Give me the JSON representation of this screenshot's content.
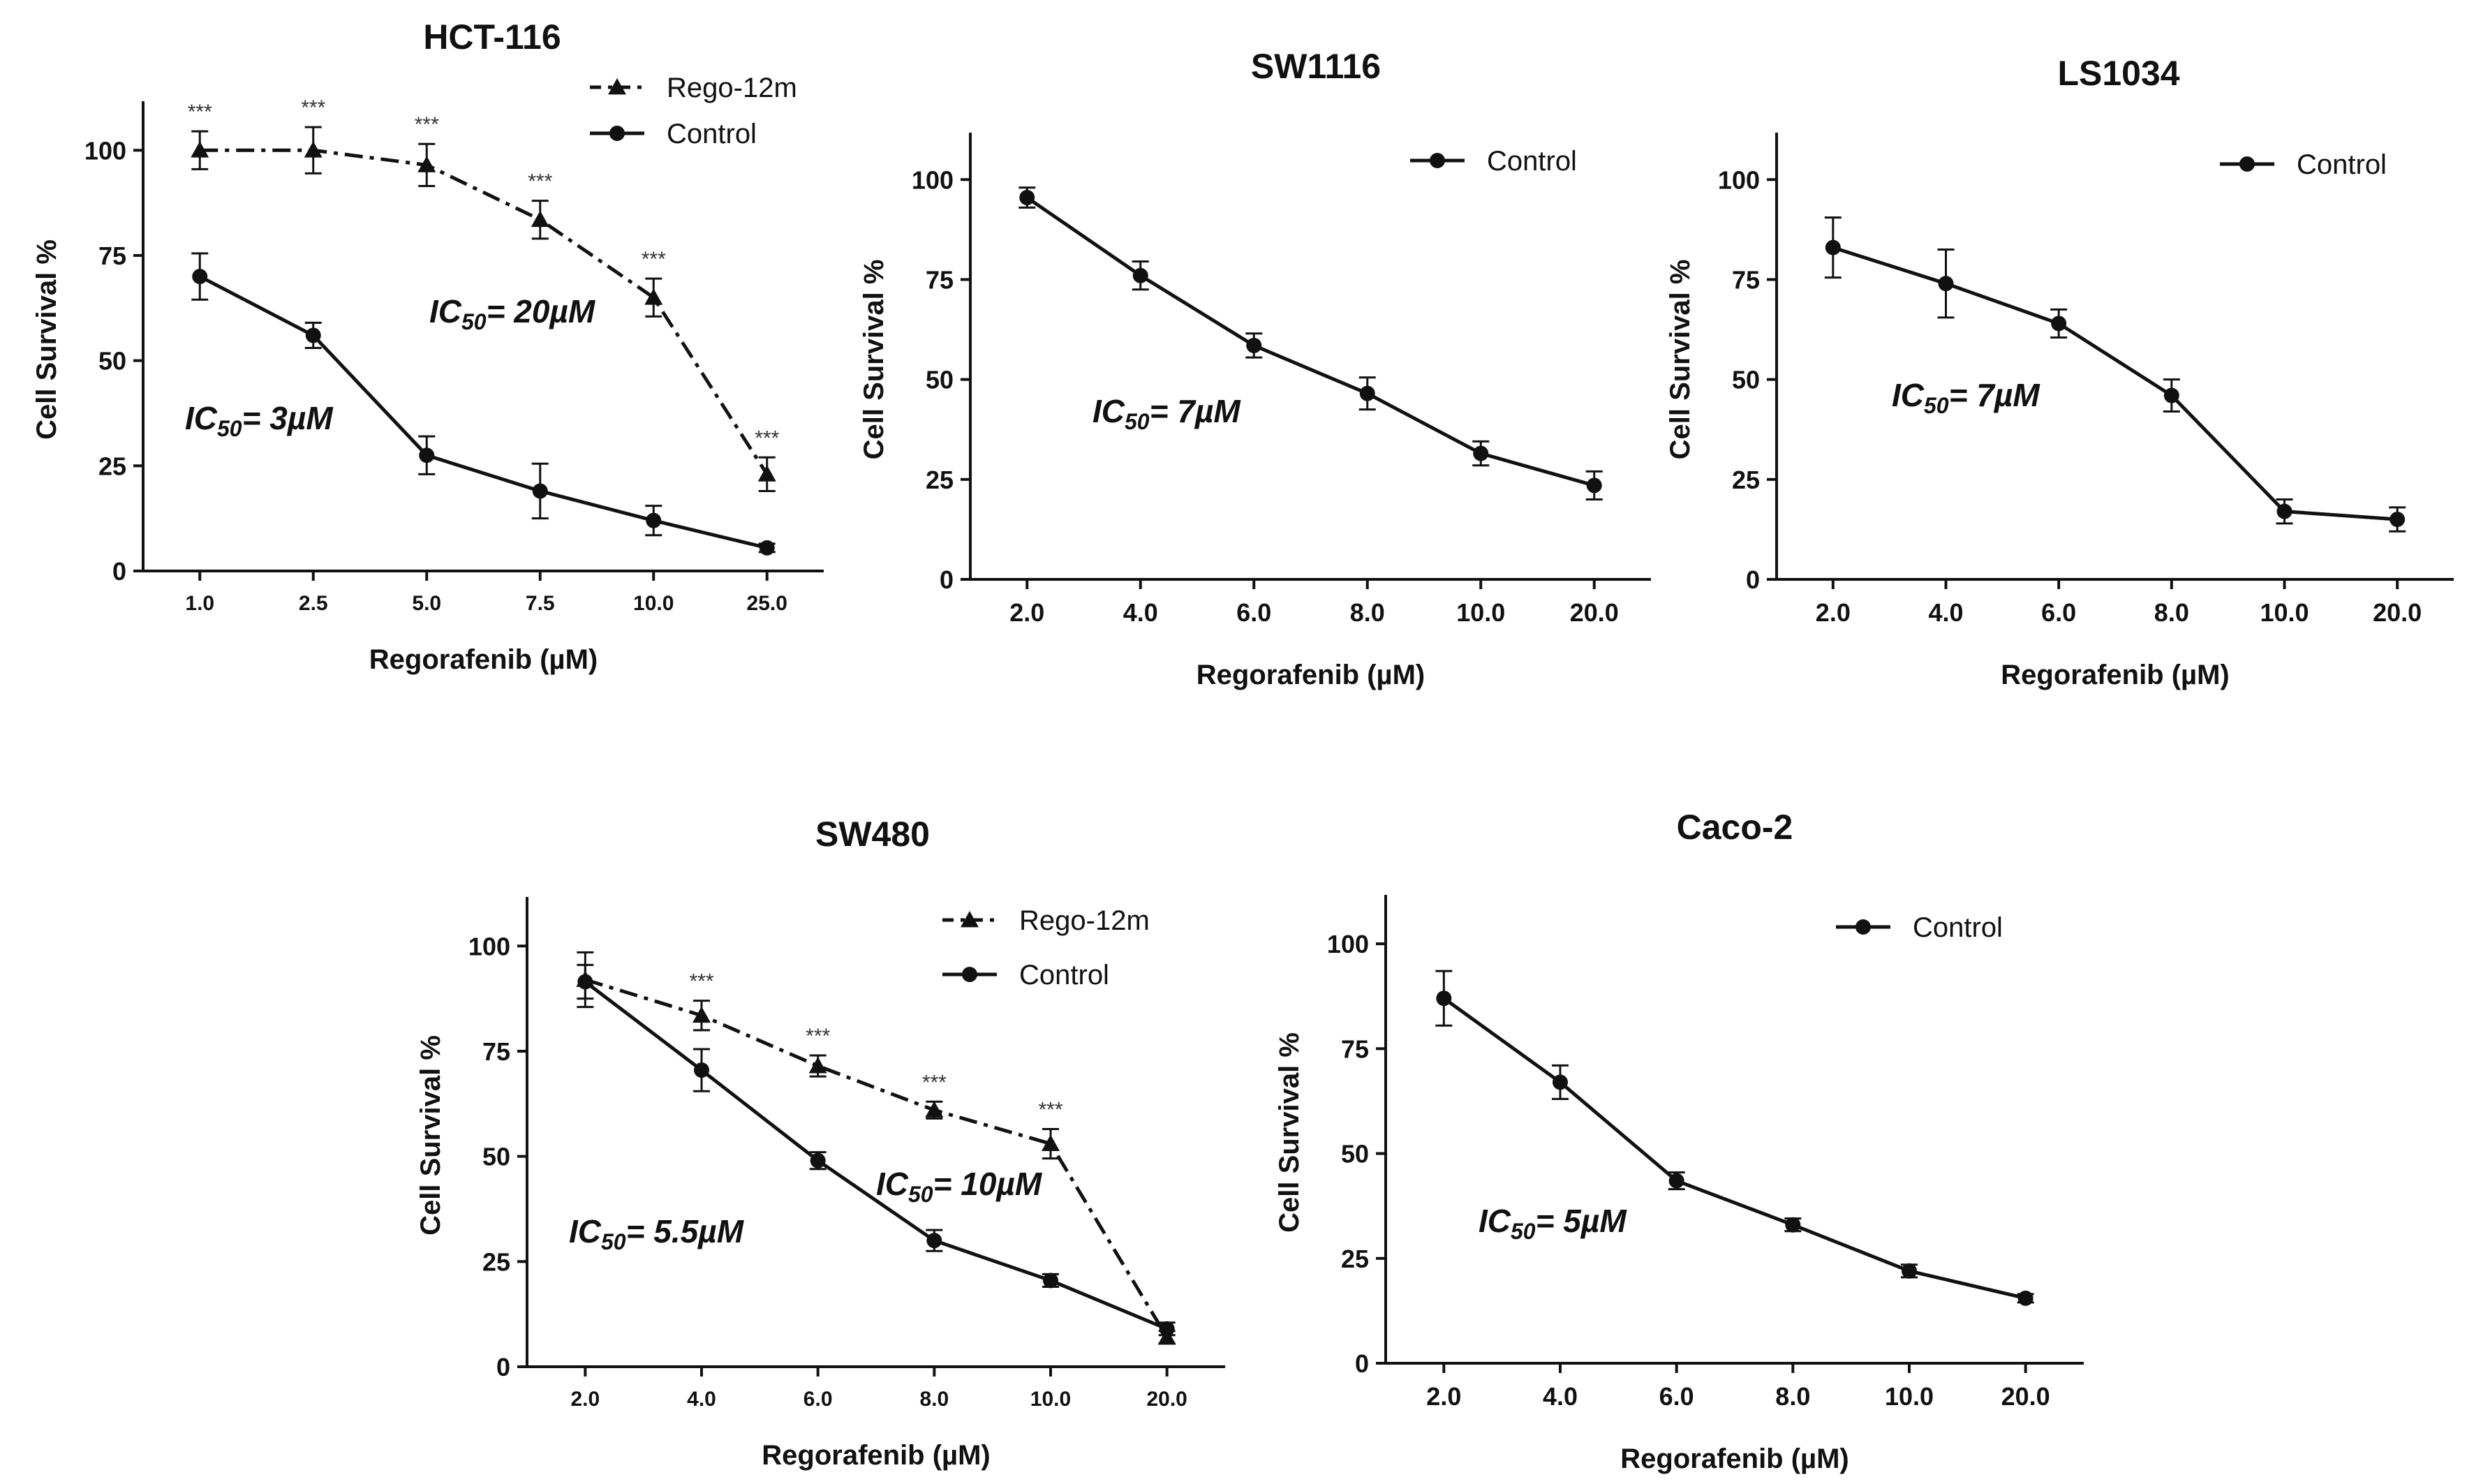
{
  "chart_data": [
    {
      "id": "hct116",
      "type": "line",
      "title": "HCT-116",
      "xlabel": "Regorafenib (µM)",
      "ylabel": "Cell Survival %",
      "categories": [
        "1.0",
        "2.5",
        "5.0",
        "7.5",
        "10.0",
        "25.0"
      ],
      "ylim": [
        0,
        110
      ],
      "yticks": [
        "0",
        "25",
        "50",
        "75",
        "100"
      ],
      "series": [
        {
          "name": "Rego-12m",
          "marker": "triangle",
          "dash": "dashdot",
          "values": [
            100,
            100,
            96.5,
            83.5,
            65,
            23
          ],
          "errors": [
            4.5,
            5.5,
            5,
            4.5,
            4.5,
            4
          ],
          "significance": [
            "***",
            "***",
            "***",
            "***",
            "***",
            "***"
          ]
        },
        {
          "name": "Control",
          "marker": "circle",
          "dash": "solid",
          "values": [
            70,
            56,
            27.5,
            19,
            12,
            5.5
          ],
          "errors": [
            5.5,
            3,
            4.5,
            6.5,
            3.5,
            1
          ]
        }
      ],
      "annotations": [
        {
          "prefix": "IC",
          "sub": "50",
          "text": "= 3µM"
        },
        {
          "prefix": "IC",
          "sub": "50",
          "text": "= 20µM"
        }
      ]
    },
    {
      "id": "sw1116",
      "type": "line",
      "title": "SW1116",
      "xlabel": "Regorafenib (µM)",
      "ylabel": "Cell Survival %",
      "categories": [
        "2.0",
        "4.0",
        "6.0",
        "8.0",
        "10.0",
        "20.0"
      ],
      "ylim": [
        0,
        110
      ],
      "yticks": [
        "0",
        "25",
        "50",
        "75",
        "100"
      ],
      "series": [
        {
          "name": "Control",
          "marker": "circle",
          "dash": "solid",
          "values": [
            95.5,
            76,
            58.5,
            46.5,
            31.5,
            23.5
          ],
          "errors": [
            2.5,
            3.5,
            3,
            4,
            3,
            3.5
          ]
        }
      ],
      "annotations": [
        {
          "prefix": "IC",
          "sub": "50",
          "text": "= 7µM"
        }
      ]
    },
    {
      "id": "ls1034",
      "type": "line",
      "title": "LS1034",
      "xlabel": "Regorafenib (µM)",
      "ylabel": "Cell Survival %",
      "categories": [
        "2.0",
        "4.0",
        "6.0",
        "8.0",
        "10.0",
        "20.0"
      ],
      "ylim": [
        0,
        110
      ],
      "yticks": [
        "0",
        "25",
        "50",
        "75",
        "100"
      ],
      "series": [
        {
          "name": "Control",
          "marker": "circle",
          "dash": "solid",
          "values": [
            83,
            74,
            64,
            46,
            17,
            15
          ],
          "errors": [
            7.5,
            8.5,
            3.5,
            4,
            3,
            3
          ]
        }
      ],
      "annotations": [
        {
          "prefix": "IC",
          "sub": "50",
          "text": "= 7µM"
        }
      ]
    },
    {
      "id": "sw480",
      "type": "line",
      "title": "SW480",
      "xlabel": "Regorafenib (µM)",
      "ylabel": "Cell Survival %",
      "categories": [
        "2.0",
        "4.0",
        "6.0",
        "8.0",
        "10.0",
        "20.0"
      ],
      "ylim": [
        0,
        110
      ],
      "yticks": [
        "0",
        "25",
        "50",
        "75",
        "100"
      ],
      "series": [
        {
          "name": "Rego-12m",
          "marker": "triangle",
          "dash": "dashdot",
          "values": [
            92,
            83.5,
            71.5,
            61,
            53,
            7
          ],
          "errors": [
            6.5,
            3.5,
            2.5,
            2,
            3.5,
            1.5
          ],
          "significance": [
            "",
            "***",
            "***",
            "***",
            "***",
            ""
          ]
        },
        {
          "name": "Control",
          "marker": "circle",
          "dash": "solid",
          "values": [
            91.5,
            70.5,
            49,
            30,
            20.5,
            9
          ],
          "errors": [
            4,
            5,
            2,
            2.5,
            1.5,
            1.5
          ]
        }
      ],
      "annotations": [
        {
          "prefix": "IC",
          "sub": "50",
          "text": "= 5.5µM"
        },
        {
          "prefix": "IC",
          "sub": "50",
          "text": "= 10µM"
        }
      ]
    },
    {
      "id": "caco2",
      "type": "line",
      "title": "Caco-2",
      "xlabel": "Regorafenib (µM)",
      "ylabel": "Cell Survival %",
      "categories": [
        "2.0",
        "4.0",
        "6.0",
        "8.0",
        "10.0",
        "20.0"
      ],
      "ylim": [
        0,
        110
      ],
      "yticks": [
        "0",
        "25",
        "50",
        "75",
        "100"
      ],
      "series": [
        {
          "name": "Control",
          "marker": "circle",
          "dash": "solid",
          "values": [
            87,
            67,
            43.5,
            33,
            22,
            15.5
          ],
          "errors": [
            6.5,
            4,
            2,
            1.5,
            1.5,
            1
          ]
        }
      ],
      "annotations": [
        {
          "prefix": "IC",
          "sub": "50",
          "text": "= 5µM"
        }
      ]
    }
  ]
}
